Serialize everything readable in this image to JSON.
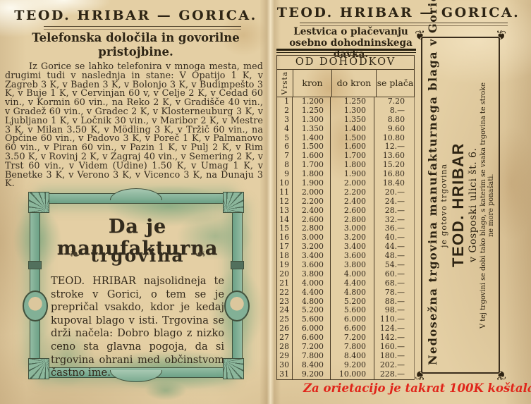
{
  "palette": {
    "paper": "#e4cfa4",
    "ink": "#33291d",
    "green_wash": "#6ca186",
    "red_note": "#e0251a"
  },
  "left_page": {
    "header": "TEOD. HRIBAR — GORICA.",
    "title": "Telefonska določila in govorilne pristojbine.",
    "body": "Iz Gorice se lahko telefonira v mnoga mesta, med drugimi tudi v naslednja in stane: V Opatijo 1 K, v Zagreb 3 K, v Baden 3 K, v Bolonjo 3 K, v Budimpešto 3 K, v Buje 1 K, v Červinjan 60 v, v Celje 2 K, v Čedad 60 vin., v Kormin 60 vin., na Reko 2 K, v Gradišče 40 vin., v Gradež 60 vin., v Gradec 2 K, v Klosterneuburg 3 K, v Ljubljano 1 K, v Ločnik 30 vin., v Maribor 2 K, v Mestre 3 K, v Milan 3.50 K, v Mödling 3 K, v Tržič 60 vin., na Opčine 60 vin., v Padovo 3 K, v Poreč 1 K, v Palmanovo 60 vin., v Piran 60 vin., v Pazin 1 K, v Pulj 2 K, v Rim 3.50 K, v Rovinj 2 K, v Zagraj 40 vin., v Semering 2 K, v Trst 60 vin., v Videm (Udine) 1.50 K, v Umag 1 K, v Benetke 3 K, v Verono 3 K, v Vicenco 3 K, na Dunaju 3 K.",
    "ad_box": {
      "headline_line1": "Da je manufakturna",
      "headline_line2": "trgovina",
      "flourish_icon": "❧",
      "body": "TEOD. HRIBAR najsolidneja te stroke v Gorici, o tem se je prepričal vsakdo, kdor je kedaj kupoval blago v isti. Trgovina se drži načela: Dobro blago z nizko ceno sta glavna pogoja, da si trgovina ohrani med občinstvom častno ime."
    }
  },
  "right_page": {
    "header": "TEOD. HRIBAR — GORICA.",
    "title_line1": "Lestvica o plačevanju",
    "title_line2": "osebno dohodninskega davka.",
    "table": {
      "caption": "OD DOHODKOV",
      "columns": [
        "Vrsta",
        "kron",
        "do kron",
        "se plača"
      ],
      "rows": [
        [
          "1",
          "1.200",
          "1.250",
          "7.20"
        ],
        [
          "2",
          "1.250",
          "1.300",
          "8.—"
        ],
        [
          "3",
          "1.300",
          "1.350",
          "8.80"
        ],
        [
          "4",
          "1.350",
          "1.400",
          "9.60"
        ],
        [
          "5",
          "1.400",
          "1.500",
          "10.80"
        ],
        [
          "6",
          "1.500",
          "1.600",
          "12.—"
        ],
        [
          "7",
          "1.600",
          "1.700",
          "13.60"
        ],
        [
          "8",
          "1.700",
          "1.800",
          "15.20"
        ],
        [
          "9",
          "1.800",
          "1.900",
          "16.80"
        ],
        [
          "10",
          "1.900",
          "2.000",
          "18.40"
        ],
        [
          "11",
          "2.000",
          "2.200",
          "20.—"
        ],
        [
          "12",
          "2.200",
          "2.400",
          "24.—"
        ],
        [
          "13",
          "2.400",
          "2.600",
          "28.—"
        ],
        [
          "14",
          "2.600",
          "2.800",
          "32.—"
        ],
        [
          "15",
          "2.800",
          "3.000",
          "36.—"
        ],
        [
          "16",
          "3.000",
          "3.200",
          "40.—"
        ],
        [
          "17",
          "3.200",
          "3.400",
          "44.—"
        ],
        [
          "18",
          "3.400",
          "3.600",
          "48.—"
        ],
        [
          "19",
          "3.600",
          "3.800",
          "54.—"
        ],
        [
          "20",
          "3.800",
          "4.000",
          "60.—"
        ],
        [
          "21",
          "4.000",
          "4.400",
          "68.—"
        ],
        [
          "22",
          "4.400",
          "4.800",
          "78.—"
        ],
        [
          "23",
          "4.800",
          "5.200",
          "88.—"
        ],
        [
          "24",
          "5.200",
          "5.600",
          "98.—"
        ],
        [
          "25",
          "5.600",
          "6.000",
          "110.—"
        ],
        [
          "26",
          "6.000",
          "6.600",
          "124.—"
        ],
        [
          "27",
          "6.600",
          "7.200",
          "142.—"
        ],
        [
          "28",
          "7.200",
          "7.800",
          "160.—"
        ],
        [
          "29",
          "7.800",
          "8.400",
          "180.—"
        ],
        [
          "30",
          "8.400",
          "9.200",
          "202.—"
        ],
        [
          "31",
          "9.200",
          "10.000",
          "228.—"
        ]
      ]
    },
    "side_box": {
      "corner_icon": "❦",
      "line1": "Nedosežna trgovina manufakturnega blaga v Gorici",
      "line2": "je gotovo trgovina",
      "brand": "TEOD. HRIBAR",
      "address": "v Gosposki ulici št. 6.",
      "note1": "V tej trgovini se dobi tako blago, s katerim se vsaka trgovina te stroke",
      "note2": "ne more ponašati."
    }
  },
  "annotation": "Za orietacijo je takrat 100K koštala krava!"
}
